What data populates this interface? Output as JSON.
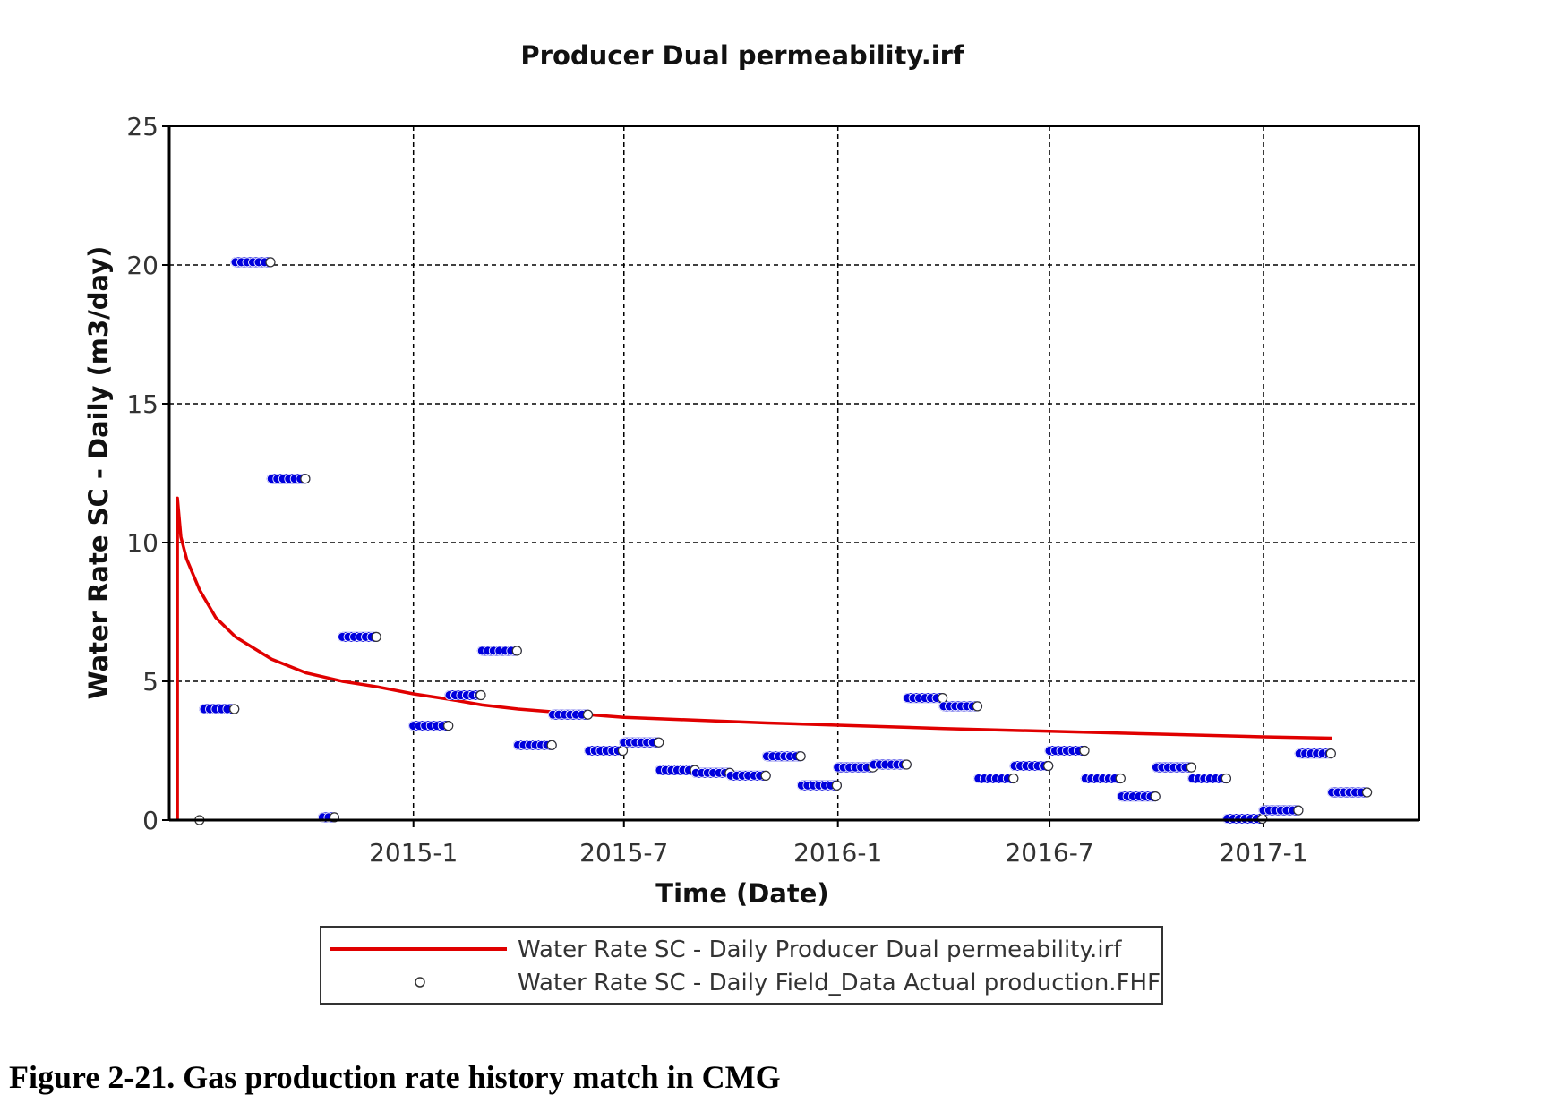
{
  "chart_data": {
    "type": "line",
    "title": "Producer Dual permeability.irf",
    "xlabel": "Time (Date)",
    "ylabel": "Water Rate SC - Daily (m3/day)",
    "xlim": [
      "2014-06-05",
      "2017-05-15"
    ],
    "ylim": [
      0,
      25
    ],
    "yticks": [
      0,
      5,
      10,
      15,
      20,
      25
    ],
    "xticks": [
      {
        "date": "2015-01-01",
        "label": "2015-1"
      },
      {
        "date": "2015-07-01",
        "label": "2015-7"
      },
      {
        "date": "2016-01-01",
        "label": "2016-1"
      },
      {
        "date": "2016-07-01",
        "label": "2016-7"
      },
      {
        "date": "2017-01-01",
        "label": "2017-1"
      }
    ],
    "grid": true,
    "legend_position": "bottom",
    "colors": {
      "simulated": "#e00000",
      "field": "#0000dd",
      "grid": "#000000"
    },
    "series": [
      {
        "name": "Water Rate SC - Daily Producer Dual permeability.irf",
        "kind": "line",
        "points": [
          [
            "2014-06-12",
            0
          ],
          [
            "2014-06-12",
            11.6
          ],
          [
            "2014-06-15",
            10.2
          ],
          [
            "2014-06-20",
            9.4
          ],
          [
            "2014-07-01",
            8.3
          ],
          [
            "2014-07-15",
            7.3
          ],
          [
            "2014-08-01",
            6.6
          ],
          [
            "2014-09-01",
            5.8
          ],
          [
            "2014-10-01",
            5.3
          ],
          [
            "2014-11-01",
            5.0
          ],
          [
            "2014-12-01",
            4.8
          ],
          [
            "2015-01-01",
            4.55
          ],
          [
            "2015-02-01",
            4.35
          ],
          [
            "2015-03-01",
            4.15
          ],
          [
            "2015-04-01",
            4.0
          ],
          [
            "2015-05-01",
            3.9
          ],
          [
            "2015-06-01",
            3.8
          ],
          [
            "2015-07-01",
            3.7
          ],
          [
            "2015-09-01",
            3.6
          ],
          [
            "2015-11-01",
            3.5
          ],
          [
            "2016-01-01",
            3.42
          ],
          [
            "2016-04-01",
            3.3
          ],
          [
            "2016-07-01",
            3.2
          ],
          [
            "2016-10-01",
            3.1
          ],
          [
            "2017-01-01",
            3.0
          ],
          [
            "2017-03-01",
            2.95
          ]
        ]
      },
      {
        "name": "Water Rate SC - Daily Field_Data Actual production.FHF",
        "kind": "scatter",
        "points": [
          [
            "2014-07-01",
            0
          ],
          [
            "2014-07-05",
            4.0
          ],
          [
            "2014-07-10",
            4.0
          ],
          [
            "2014-07-15",
            4.0
          ],
          [
            "2014-07-20",
            4.0
          ],
          [
            "2014-07-25",
            4.0
          ],
          [
            "2014-07-31",
            4.0
          ],
          [
            "2014-08-01",
            20.1
          ],
          [
            "2014-08-06",
            20.1
          ],
          [
            "2014-08-11",
            20.1
          ],
          [
            "2014-08-16",
            20.1
          ],
          [
            "2014-08-21",
            20.1
          ],
          [
            "2014-08-26",
            20.1
          ],
          [
            "2014-08-31",
            20.1
          ],
          [
            "2014-09-01",
            12.3
          ],
          [
            "2014-09-06",
            12.3
          ],
          [
            "2014-09-11",
            12.3
          ],
          [
            "2014-09-16",
            12.3
          ],
          [
            "2014-09-21",
            12.3
          ],
          [
            "2014-09-26",
            12.3
          ],
          [
            "2014-09-30",
            12.3
          ],
          [
            "2014-10-15",
            0.1
          ],
          [
            "2014-10-20",
            0.1
          ],
          [
            "2014-10-25",
            0.1
          ],
          [
            "2014-11-01",
            6.6
          ],
          [
            "2014-11-06",
            6.6
          ],
          [
            "2014-11-11",
            6.6
          ],
          [
            "2014-11-16",
            6.6
          ],
          [
            "2014-11-21",
            6.6
          ],
          [
            "2014-11-26",
            6.6
          ],
          [
            "2014-11-30",
            6.6
          ],
          [
            "2015-01-01",
            3.4
          ],
          [
            "2015-01-06",
            3.4
          ],
          [
            "2015-01-11",
            3.4
          ],
          [
            "2015-01-16",
            3.4
          ],
          [
            "2015-01-21",
            3.4
          ],
          [
            "2015-01-26",
            3.4
          ],
          [
            "2015-01-31",
            3.4
          ],
          [
            "2015-02-01",
            4.5
          ],
          [
            "2015-02-06",
            4.5
          ],
          [
            "2015-02-11",
            4.5
          ],
          [
            "2015-02-16",
            4.5
          ],
          [
            "2015-02-21",
            4.5
          ],
          [
            "2015-02-26",
            4.5
          ],
          [
            "2015-02-28",
            4.5
          ],
          [
            "2015-03-01",
            6.1
          ],
          [
            "2015-03-06",
            6.1
          ],
          [
            "2015-03-11",
            6.1
          ],
          [
            "2015-03-16",
            6.1
          ],
          [
            "2015-03-21",
            6.1
          ],
          [
            "2015-03-26",
            6.1
          ],
          [
            "2015-03-31",
            6.1
          ],
          [
            "2015-04-01",
            2.7
          ],
          [
            "2015-04-06",
            2.7
          ],
          [
            "2015-04-11",
            2.7
          ],
          [
            "2015-04-16",
            2.7
          ],
          [
            "2015-04-21",
            2.7
          ],
          [
            "2015-04-26",
            2.7
          ],
          [
            "2015-04-30",
            2.7
          ],
          [
            "2015-05-01",
            3.8
          ],
          [
            "2015-05-06",
            3.8
          ],
          [
            "2015-05-11",
            3.8
          ],
          [
            "2015-05-16",
            3.8
          ],
          [
            "2015-05-21",
            3.8
          ],
          [
            "2015-05-26",
            3.8
          ],
          [
            "2015-05-31",
            3.8
          ],
          [
            "2015-06-01",
            2.5
          ],
          [
            "2015-06-06",
            2.5
          ],
          [
            "2015-06-11",
            2.5
          ],
          [
            "2015-06-16",
            2.5
          ],
          [
            "2015-06-21",
            2.5
          ],
          [
            "2015-06-26",
            2.5
          ],
          [
            "2015-06-30",
            2.5
          ],
          [
            "2015-07-01",
            2.8
          ],
          [
            "2015-07-06",
            2.8
          ],
          [
            "2015-07-11",
            2.8
          ],
          [
            "2015-07-16",
            2.8
          ],
          [
            "2015-07-21",
            2.8
          ],
          [
            "2015-07-26",
            2.8
          ],
          [
            "2015-07-31",
            2.8
          ],
          [
            "2015-08-01",
            1.8
          ],
          [
            "2015-08-06",
            1.8
          ],
          [
            "2015-08-11",
            1.8
          ],
          [
            "2015-08-16",
            1.8
          ],
          [
            "2015-08-21",
            1.8
          ],
          [
            "2015-08-26",
            1.8
          ],
          [
            "2015-08-31",
            1.8
          ],
          [
            "2015-09-01",
            1.7
          ],
          [
            "2015-09-06",
            1.7
          ],
          [
            "2015-09-11",
            1.7
          ],
          [
            "2015-09-16",
            1.7
          ],
          [
            "2015-09-21",
            1.7
          ],
          [
            "2015-09-26",
            1.7
          ],
          [
            "2015-09-30",
            1.7
          ],
          [
            "2015-10-01",
            1.6
          ],
          [
            "2015-10-06",
            1.6
          ],
          [
            "2015-10-11",
            1.6
          ],
          [
            "2015-10-16",
            1.6
          ],
          [
            "2015-10-21",
            1.6
          ],
          [
            "2015-10-26",
            1.6
          ],
          [
            "2015-10-31",
            1.6
          ],
          [
            "2015-11-01",
            2.3
          ],
          [
            "2015-11-06",
            2.3
          ],
          [
            "2015-11-11",
            2.3
          ],
          [
            "2015-11-16",
            2.3
          ],
          [
            "2015-11-21",
            2.3
          ],
          [
            "2015-11-26",
            2.3
          ],
          [
            "2015-11-30",
            2.3
          ],
          [
            "2015-12-01",
            1.25
          ],
          [
            "2015-12-06",
            1.25
          ],
          [
            "2015-12-11",
            1.25
          ],
          [
            "2015-12-16",
            1.25
          ],
          [
            "2015-12-21",
            1.25
          ],
          [
            "2015-12-26",
            1.25
          ],
          [
            "2015-12-31",
            1.25
          ],
          [
            "2016-01-01",
            1.9
          ],
          [
            "2016-01-06",
            1.9
          ],
          [
            "2016-01-11",
            1.9
          ],
          [
            "2016-01-16",
            1.9
          ],
          [
            "2016-01-21",
            1.9
          ],
          [
            "2016-01-26",
            1.9
          ],
          [
            "2016-01-31",
            1.9
          ],
          [
            "2016-02-01",
            2.0
          ],
          [
            "2016-02-06",
            2.0
          ],
          [
            "2016-02-11",
            2.0
          ],
          [
            "2016-02-16",
            2.0
          ],
          [
            "2016-02-21",
            2.0
          ],
          [
            "2016-02-26",
            2.0
          ],
          [
            "2016-02-29",
            2.0
          ],
          [
            "2016-03-01",
            4.4
          ],
          [
            "2016-03-06",
            4.4
          ],
          [
            "2016-03-11",
            4.4
          ],
          [
            "2016-03-16",
            4.4
          ],
          [
            "2016-03-21",
            4.4
          ],
          [
            "2016-03-26",
            4.4
          ],
          [
            "2016-03-31",
            4.4
          ],
          [
            "2016-04-01",
            4.1
          ],
          [
            "2016-04-06",
            4.1
          ],
          [
            "2016-04-11",
            4.1
          ],
          [
            "2016-04-16",
            4.1
          ],
          [
            "2016-04-21",
            4.1
          ],
          [
            "2016-04-26",
            4.1
          ],
          [
            "2016-04-30",
            4.1
          ],
          [
            "2016-05-01",
            1.5
          ],
          [
            "2016-05-06",
            1.5
          ],
          [
            "2016-05-11",
            1.5
          ],
          [
            "2016-05-16",
            1.5
          ],
          [
            "2016-05-21",
            1.5
          ],
          [
            "2016-05-26",
            1.5
          ],
          [
            "2016-05-31",
            1.5
          ],
          [
            "2016-06-01",
            1.95
          ],
          [
            "2016-06-06",
            1.95
          ],
          [
            "2016-06-11",
            1.95
          ],
          [
            "2016-06-16",
            1.95
          ],
          [
            "2016-06-21",
            1.95
          ],
          [
            "2016-06-26",
            1.95
          ],
          [
            "2016-06-30",
            1.95
          ],
          [
            "2016-07-01",
            2.5
          ],
          [
            "2016-07-06",
            2.5
          ],
          [
            "2016-07-11",
            2.5
          ],
          [
            "2016-07-16",
            2.5
          ],
          [
            "2016-07-21",
            2.5
          ],
          [
            "2016-07-26",
            2.5
          ],
          [
            "2016-07-31",
            2.5
          ],
          [
            "2016-08-01",
            1.5
          ],
          [
            "2016-08-06",
            1.5
          ],
          [
            "2016-08-11",
            1.5
          ],
          [
            "2016-08-16",
            1.5
          ],
          [
            "2016-08-21",
            1.5
          ],
          [
            "2016-08-26",
            1.5
          ],
          [
            "2016-08-31",
            1.5
          ],
          [
            "2016-09-01",
            0.85
          ],
          [
            "2016-09-06",
            0.85
          ],
          [
            "2016-09-11",
            0.85
          ],
          [
            "2016-09-16",
            0.85
          ],
          [
            "2016-09-21",
            0.85
          ],
          [
            "2016-09-26",
            0.85
          ],
          [
            "2016-09-30",
            0.85
          ],
          [
            "2016-10-01",
            1.9
          ],
          [
            "2016-10-06",
            1.9
          ],
          [
            "2016-10-11",
            1.9
          ],
          [
            "2016-10-16",
            1.9
          ],
          [
            "2016-10-21",
            1.9
          ],
          [
            "2016-10-26",
            1.9
          ],
          [
            "2016-10-31",
            1.9
          ],
          [
            "2016-11-01",
            1.5
          ],
          [
            "2016-11-06",
            1.5
          ],
          [
            "2016-11-11",
            1.5
          ],
          [
            "2016-11-16",
            1.5
          ],
          [
            "2016-11-21",
            1.5
          ],
          [
            "2016-11-26",
            1.5
          ],
          [
            "2016-11-30",
            1.5
          ],
          [
            "2016-12-01",
            0.05
          ],
          [
            "2016-12-06",
            0.05
          ],
          [
            "2016-12-11",
            0.05
          ],
          [
            "2016-12-16",
            0.05
          ],
          [
            "2016-12-21",
            0.05
          ],
          [
            "2016-12-26",
            0.05
          ],
          [
            "2016-12-31",
            0.05
          ],
          [
            "2017-01-01",
            0.35
          ],
          [
            "2017-01-06",
            0.35
          ],
          [
            "2017-01-11",
            0.35
          ],
          [
            "2017-01-16",
            0.35
          ],
          [
            "2017-01-21",
            0.35
          ],
          [
            "2017-01-26",
            0.35
          ],
          [
            "2017-01-31",
            0.35
          ],
          [
            "2017-02-01",
            2.4
          ],
          [
            "2017-02-06",
            2.4
          ],
          [
            "2017-02-11",
            2.4
          ],
          [
            "2017-02-16",
            2.4
          ],
          [
            "2017-02-21",
            2.4
          ],
          [
            "2017-02-26",
            2.4
          ],
          [
            "2017-02-28",
            2.4
          ],
          [
            "2017-03-01",
            1.0
          ],
          [
            "2017-03-06",
            1.0
          ],
          [
            "2017-03-11",
            1.0
          ],
          [
            "2017-03-16",
            1.0
          ],
          [
            "2017-03-21",
            1.0
          ],
          [
            "2017-03-26",
            1.0
          ],
          [
            "2017-03-31",
            1.0
          ]
        ]
      }
    ]
  },
  "caption": "Figure 2-21. Gas production rate history match in CMG"
}
